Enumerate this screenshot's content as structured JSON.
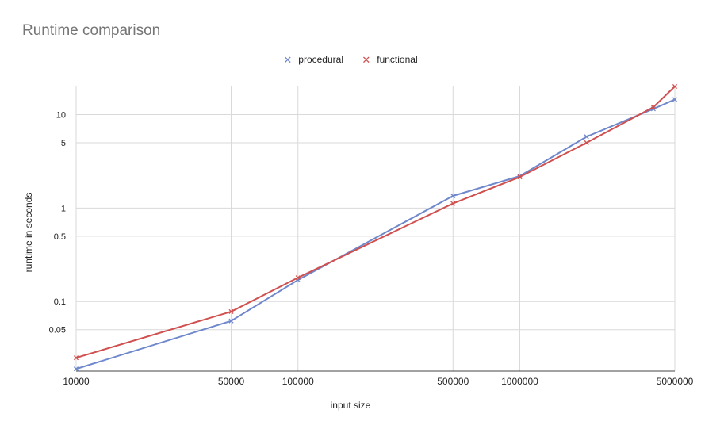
{
  "chart_data": {
    "type": "line",
    "title": "Runtime comparison",
    "xlabel": "input size",
    "ylabel": "runtime in seconds",
    "x_scale": "log",
    "y_scale": "log",
    "x_ticks": [
      "10000",
      "50000",
      "100000",
      "500000",
      "1000000",
      "5000000"
    ],
    "y_ticks": [
      "0.05",
      "0.1",
      "0.5",
      "1",
      "5",
      "10"
    ],
    "xlim": [
      10000,
      5000000
    ],
    "ylim": [
      0.018,
      20
    ],
    "grid": true,
    "legend_position": "top",
    "x": [
      10000,
      50000,
      100000,
      500000,
      1000000,
      2000000,
      4000000,
      5000000
    ],
    "series": [
      {
        "name": "procedural",
        "color": "#6f88cc",
        "marker": "x",
        "values": [
          0.019,
          0.062,
          0.17,
          1.35,
          2.2,
          5.8,
          11.5,
          14.5
        ]
      },
      {
        "name": "functional",
        "color": "#d05050",
        "marker": "x",
        "values": [
          0.025,
          0.078,
          0.18,
          1.12,
          2.15,
          5.0,
          12.0,
          20.0
        ]
      }
    ]
  }
}
